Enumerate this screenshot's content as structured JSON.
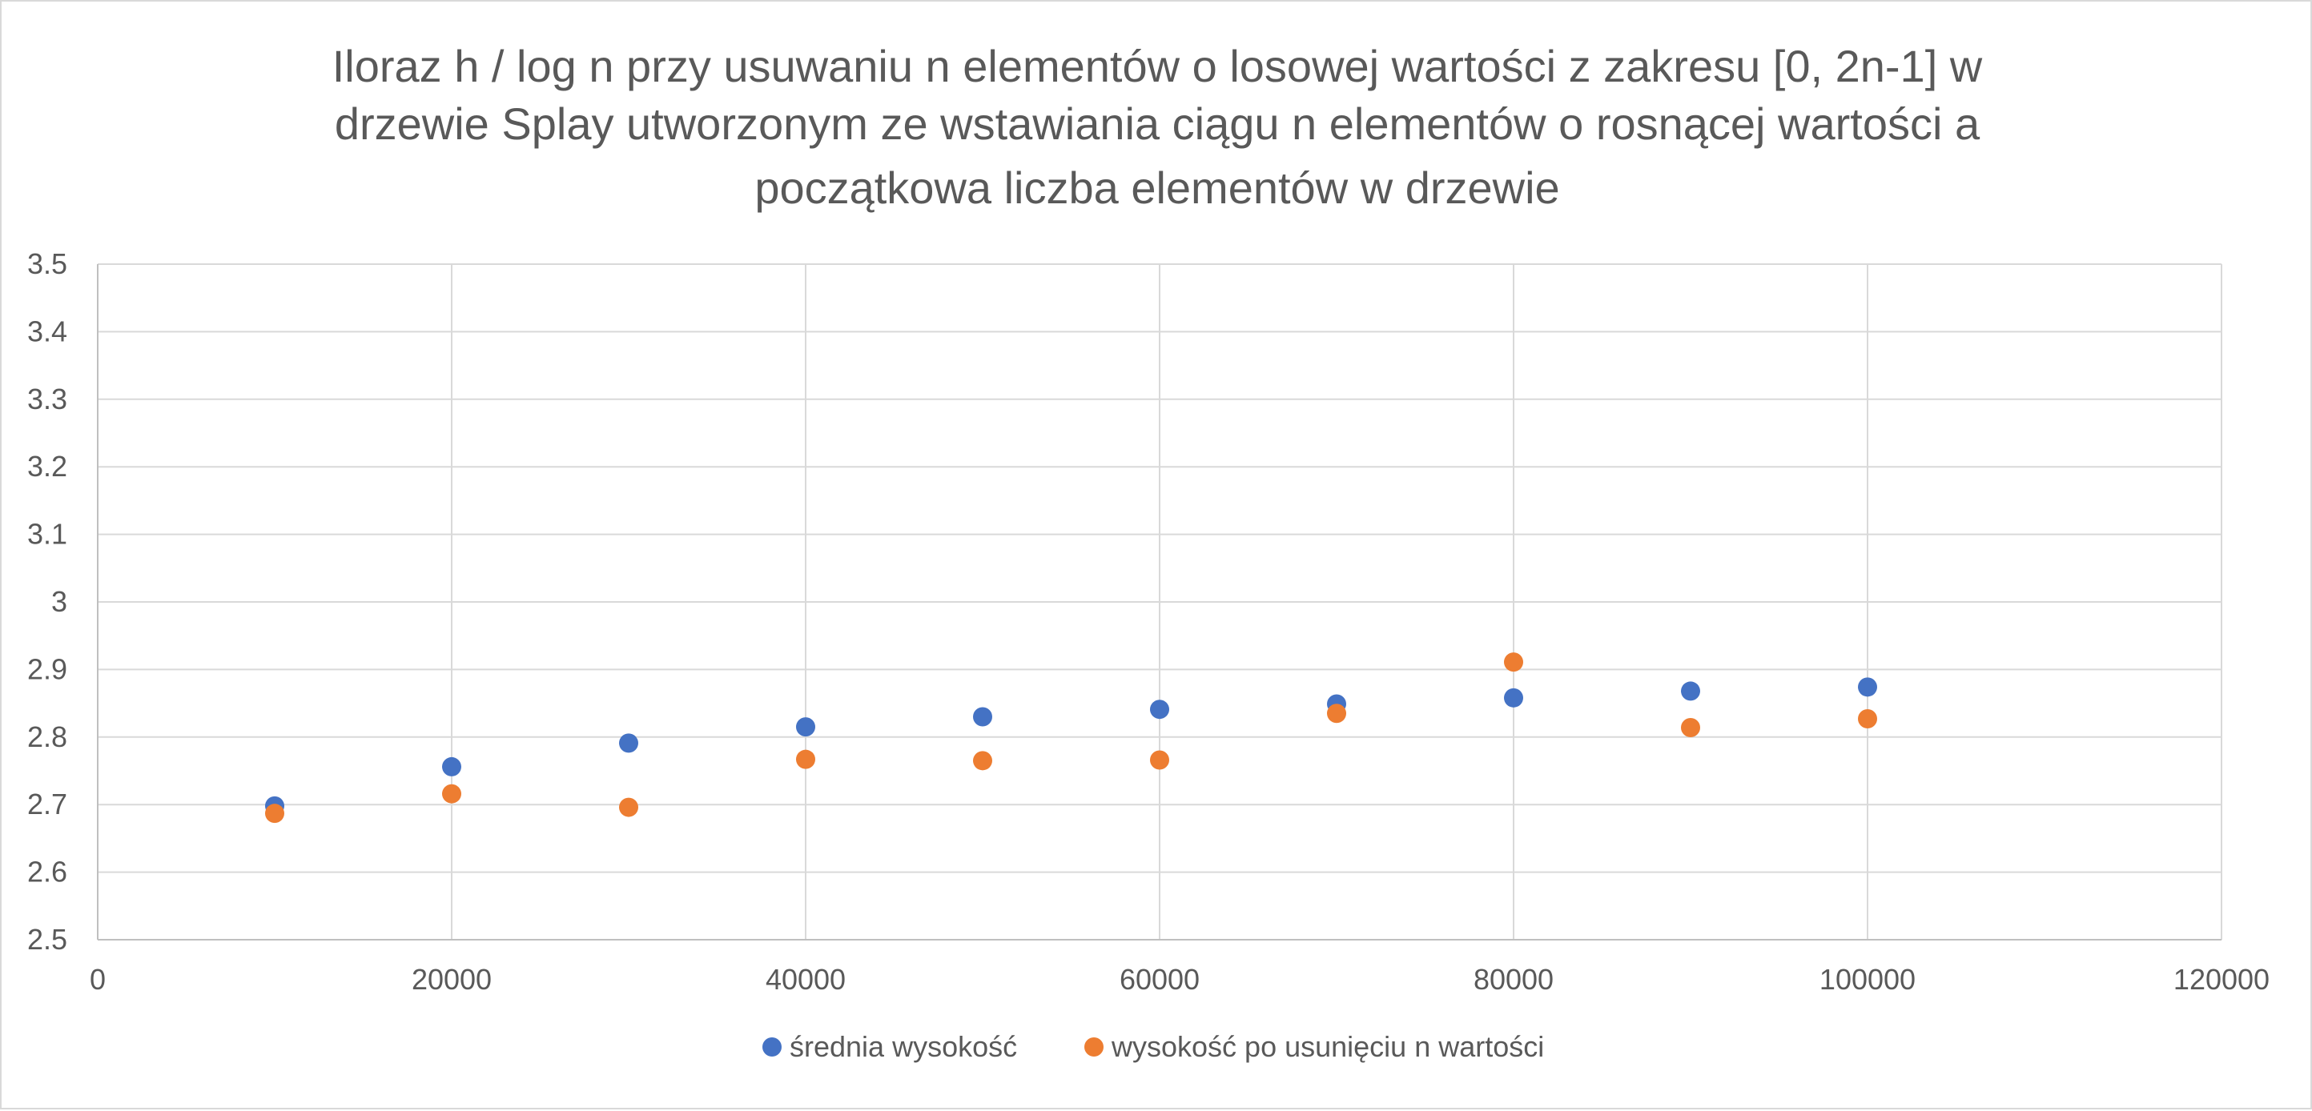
{
  "chart_data": {
    "type": "scatter",
    "title_lines": [
      "Iloraz h / log n przy usuwaniu n elementów o losowej wartości z zakresu [0, 2n-1] w",
      "drzewie Splay utworzonym ze wstawiania ciągu n elementów o rosnącej wartości a",
      "początkowa liczba elementów w drzewie"
    ],
    "xlabel": "",
    "ylabel": "",
    "xlim": [
      0,
      120000
    ],
    "ylim": [
      2.5,
      3.5
    ],
    "x_ticks": [
      "0",
      "20000",
      "40000",
      "60000",
      "80000",
      "100000",
      "120000"
    ],
    "y_ticks": [
      "2.5",
      "2.6",
      "2.7",
      "2.8",
      "2.9",
      "3",
      "3.1",
      "3.2",
      "3.3",
      "3.4",
      "3.5"
    ],
    "grid": true,
    "legend_position": "bottom",
    "series": [
      {
        "name": "średnia wysokość",
        "color": "#4472c4",
        "points": [
          {
            "x": 10000,
            "y": 2.698
          },
          {
            "x": 20000,
            "y": 2.756
          },
          {
            "x": 30000,
            "y": 2.791
          },
          {
            "x": 40000,
            "y": 2.815
          },
          {
            "x": 50000,
            "y": 2.83
          },
          {
            "x": 60000,
            "y": 2.841
          },
          {
            "x": 70000,
            "y": 2.849
          },
          {
            "x": 80000,
            "y": 2.858
          },
          {
            "x": 90000,
            "y": 2.868
          },
          {
            "x": 100000,
            "y": 2.874
          }
        ]
      },
      {
        "name": "wysokość po usunięciu n wartości",
        "color": "#ed7d31",
        "points": [
          {
            "x": 10000,
            "y": 2.687
          },
          {
            "x": 20000,
            "y": 2.716
          },
          {
            "x": 30000,
            "y": 2.696
          },
          {
            "x": 40000,
            "y": 2.767
          },
          {
            "x": 50000,
            "y": 2.765
          },
          {
            "x": 60000,
            "y": 2.766
          },
          {
            "x": 70000,
            "y": 2.835
          },
          {
            "x": 80000,
            "y": 2.911
          },
          {
            "x": 90000,
            "y": 2.814
          },
          {
            "x": 100000,
            "y": 2.827
          }
        ]
      }
    ]
  }
}
